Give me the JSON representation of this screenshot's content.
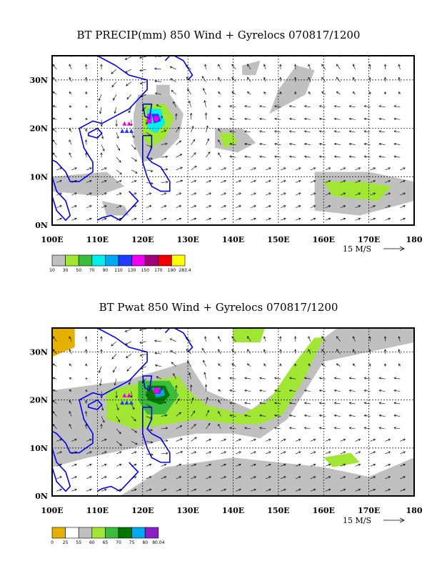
{
  "panels": [
    {
      "title": "BT PRECIP(mm) 850 Wind + Gyrelocs 070817/1200",
      "x_ticks": [
        "100E",
        "110E",
        "120E",
        "130E",
        "140E",
        "150E",
        "160E",
        "170E",
        "180"
      ],
      "y_ticks": [
        "30N",
        "20N",
        "10N",
        "0N"
      ],
      "reference_vector": "15 M/S",
      "colorbar": {
        "labels": [
          "10",
          "30",
          "50",
          "70",
          "90",
          "110",
          "130",
          "150",
          "170",
          "190",
          "283.4"
        ],
        "colors": [
          "#c0c0c0",
          "#a0e632",
          "#3cbc3c",
          "#00f0f0",
          "#00aaf0",
          "#1e3cff",
          "#f000f0",
          "#a0007a",
          "#f00000",
          "#ffff00"
        ]
      }
    },
    {
      "title": "BT Pwat 850 Wind + Gyrelocs 070817/1200",
      "x_ticks": [
        "100E",
        "110E",
        "120E",
        "130E",
        "140E",
        "150E",
        "160E",
        "170E",
        "180"
      ],
      "y_ticks": [
        "30N",
        "20N",
        "10N",
        "0N"
      ],
      "reference_vector": "15 M/S",
      "colorbar": {
        "labels": [
          "0",
          "25",
          "55",
          "60",
          "65",
          "70",
          "75",
          "80",
          "80.04"
        ],
        "colors": [
          "#e6b000",
          "#ffffff",
          "#c0c0c0",
          "#a0e632",
          "#3cbc3c",
          "#007800",
          "#00aaf0",
          "#8c1ec8"
        ]
      }
    }
  ],
  "map": {
    "lon_range": [
      100,
      180
    ],
    "lat_range": [
      0,
      35
    ],
    "coast_color": "#0000ff",
    "gyre_markers": [
      {
        "lon": 115.5,
        "lat": 19.5,
        "color": "#1e3cff"
      },
      {
        "lon": 116.5,
        "lat": 19.5,
        "color": "#1e3cff"
      },
      {
        "lon": 117.5,
        "lat": 19.5,
        "color": "#1e3cff"
      },
      {
        "lon": 116.0,
        "lat": 21.0,
        "color": "#f000f0"
      },
      {
        "lon": 117.0,
        "lat": 21.0,
        "color": "#f000f0"
      }
    ],
    "storm_center": {
      "lon": 123,
      "lat": 22
    }
  }
}
